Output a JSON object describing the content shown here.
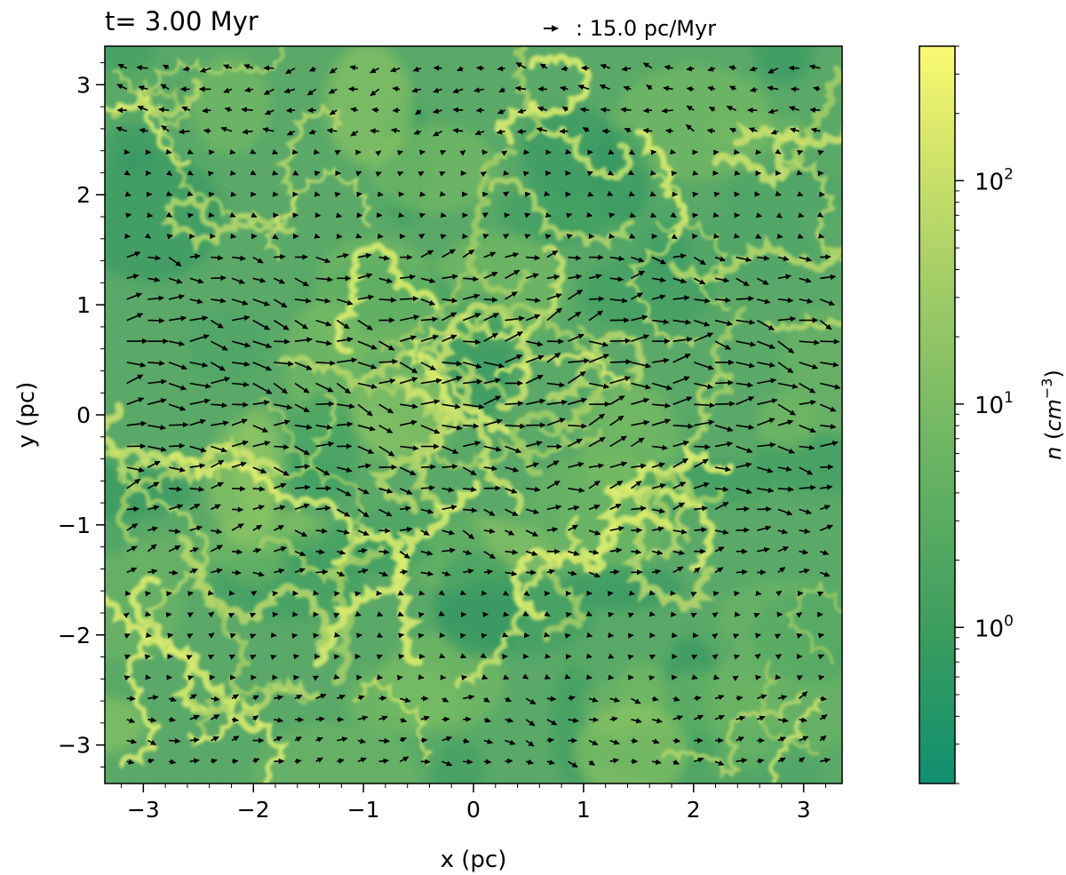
{
  "chart_data": {
    "type": "heatmap",
    "title": "t= 3.00 Myr",
    "quiver_key": {
      "label": ": 15.0 pc/Myr",
      "magnitude": 15.0,
      "unit": "pc/Myr"
    },
    "xlabel": "x (pc)",
    "ylabel": "y (pc)",
    "xlim": [
      -3.35,
      3.35
    ],
    "ylim": [
      -3.35,
      3.35
    ],
    "x_ticks": [
      -3,
      -2,
      -1,
      0,
      1,
      2,
      3
    ],
    "y_ticks": [
      -3,
      -2,
      -1,
      0,
      1,
      2,
      3
    ],
    "x_tick_labels": [
      "−3",
      "−2",
      "−1",
      "0",
      "1",
      "2",
      "3"
    ],
    "y_tick_labels": [
      "−3",
      "−2",
      "−1",
      "0",
      "1",
      "2",
      "3"
    ],
    "colorbar": {
      "label_prefix": "n",
      "label_unit": "cm",
      "label_exp": "−3",
      "scale": "log",
      "range": [
        0.2,
        400
      ],
      "ticks": [
        1,
        10,
        100
      ],
      "tick_labels": [
        {
          "base": "10",
          "exp": "0"
        },
        {
          "base": "10",
          "exp": "1"
        },
        {
          "base": "10",
          "exp": "2"
        }
      ],
      "colormap": [
        "#0f8f70",
        "#3a9d5e",
        "#6cb563",
        "#a7cf66",
        "#d9e86a",
        "#fafa72"
      ]
    },
    "series": []
  }
}
